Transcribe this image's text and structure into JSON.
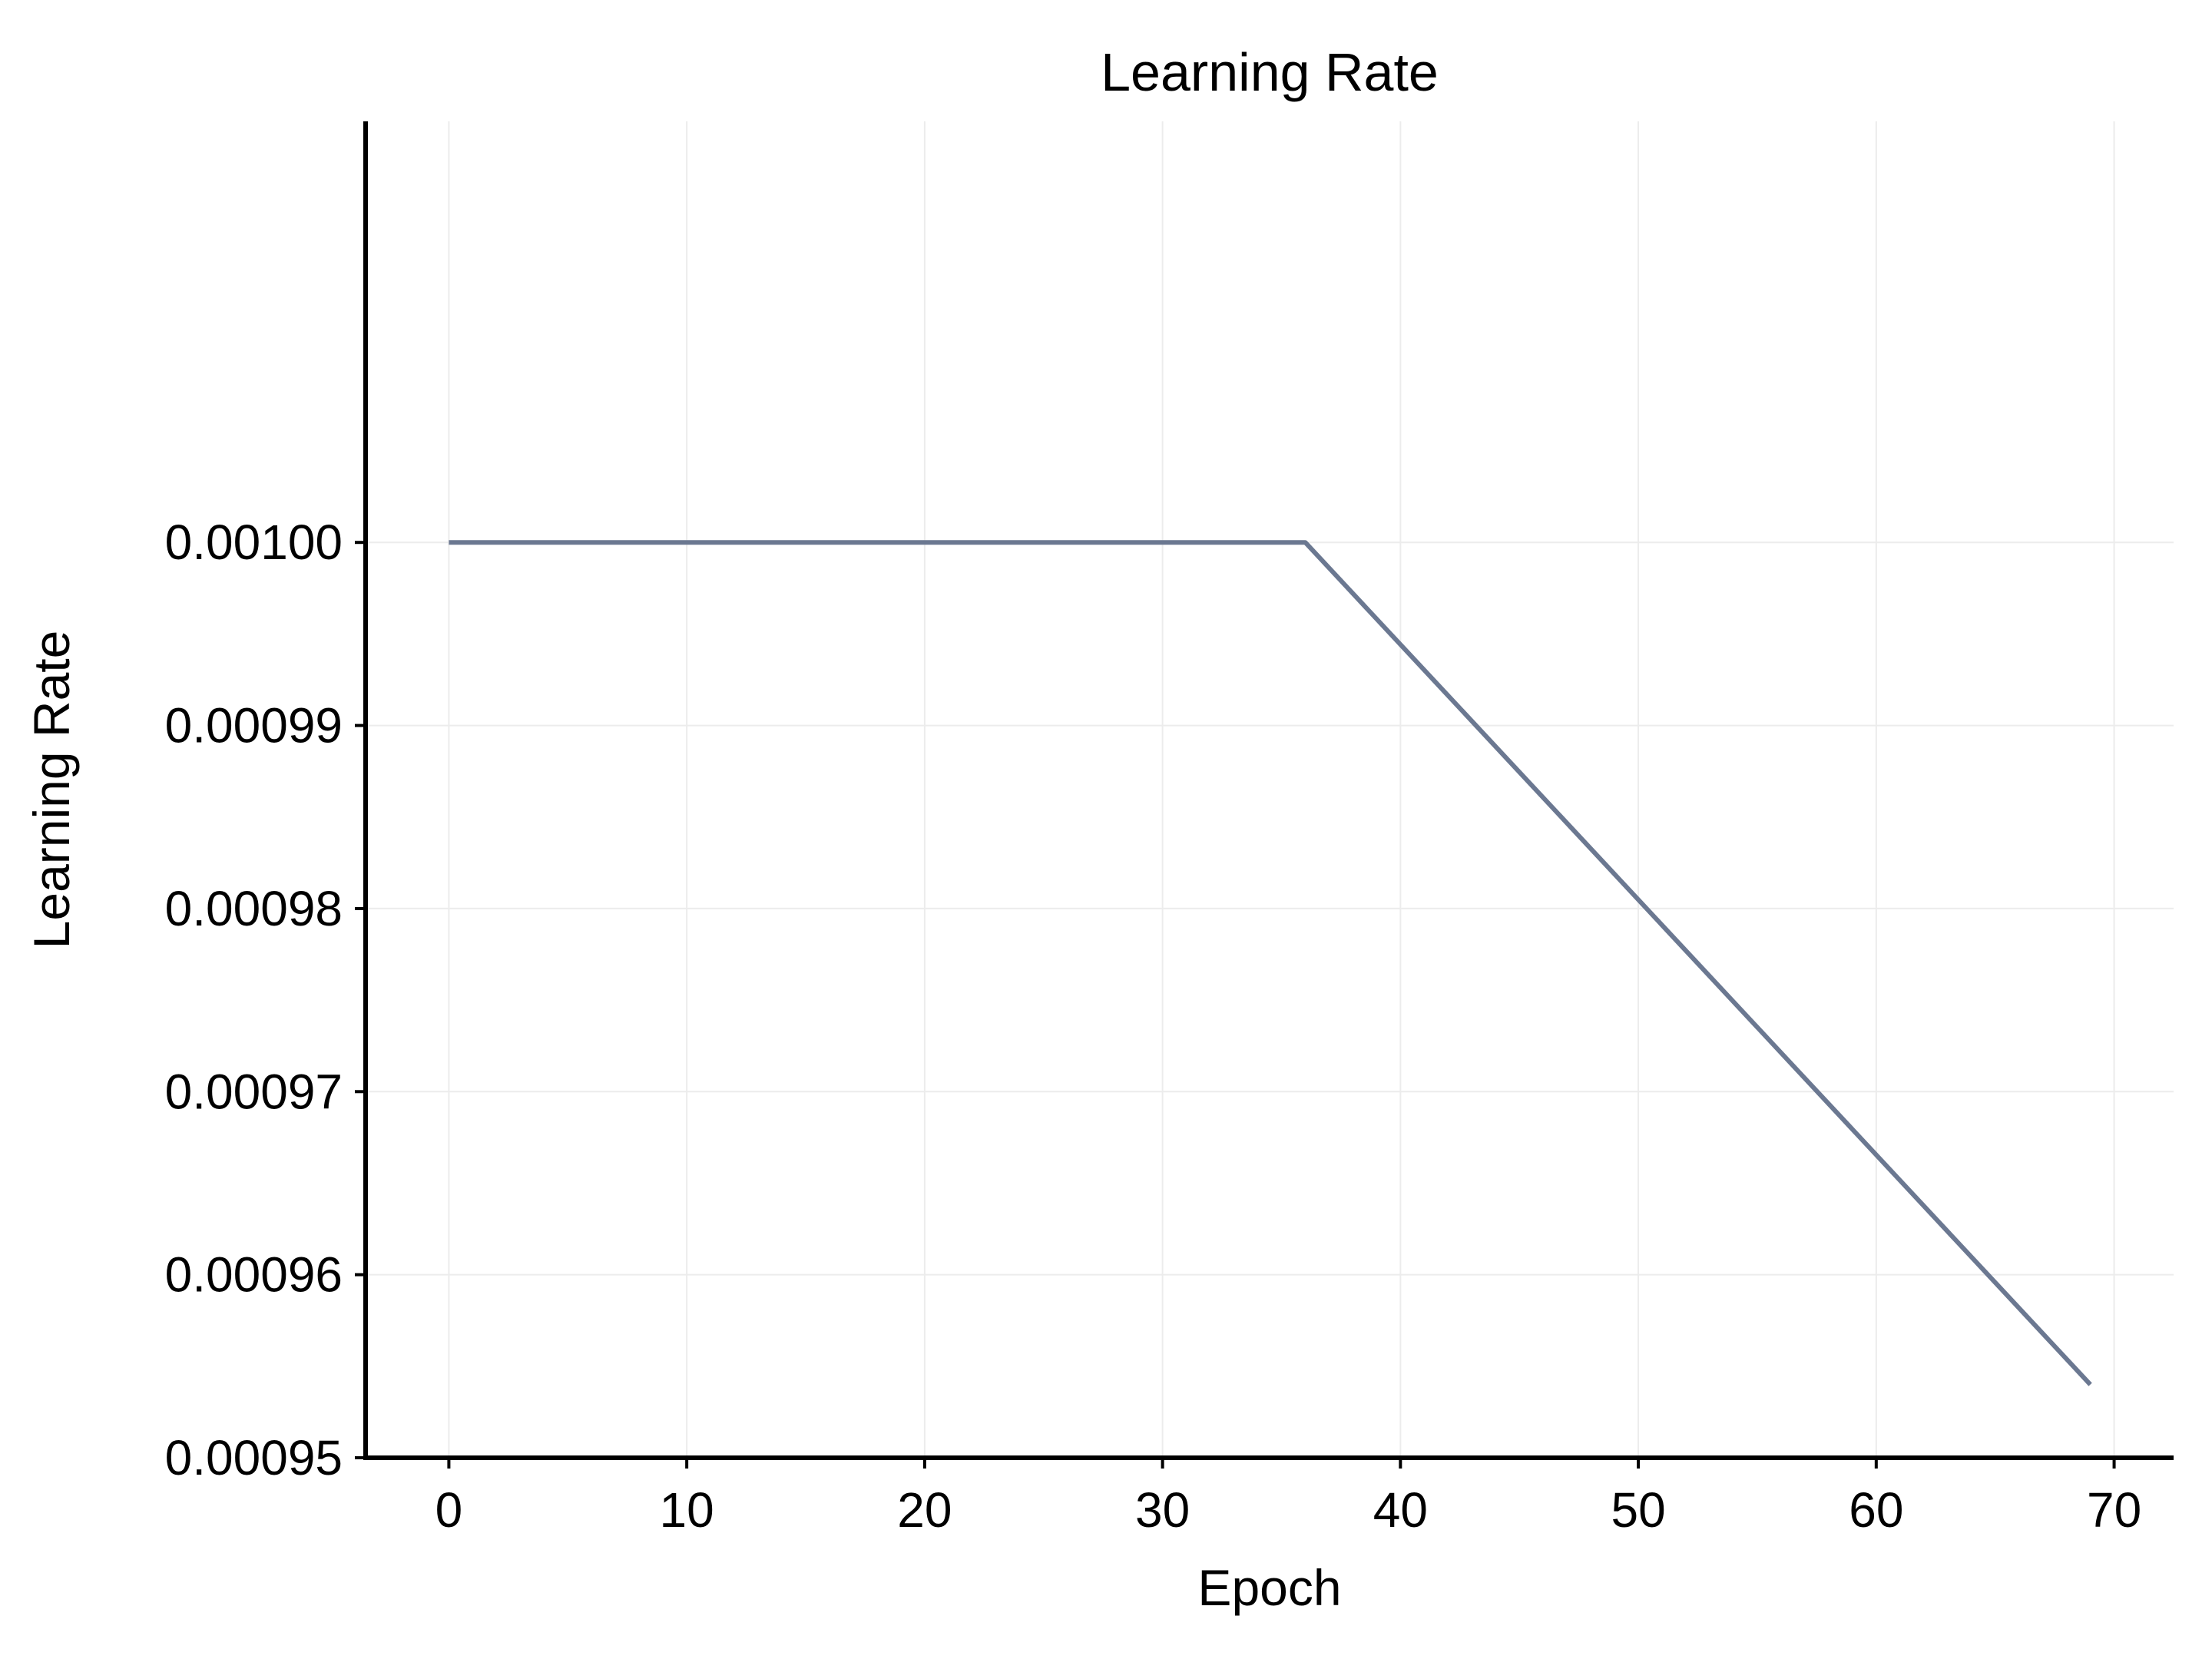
{
  "chart_data": {
    "type": "line",
    "title": "Learning Rate",
    "xlabel": "Epoch",
    "ylabel": "Learning Rate",
    "xlim": [
      -3.5,
      72.5
    ],
    "ylim": [
      0.00095,
      0.001023
    ],
    "x_ticks": [
      "0",
      "10",
      "20",
      "30",
      "40",
      "50",
      "60",
      "70"
    ],
    "x_tick_values": [
      0,
      10,
      20,
      30,
      40,
      50,
      60,
      70
    ],
    "y_ticks": [
      "0.00095",
      "0.00096",
      "0.00097",
      "0.00098",
      "0.00099",
      "0.00100"
    ],
    "y_tick_values": [
      0.00095,
      0.00096,
      0.00097,
      0.00098,
      0.00099,
      0.001
    ],
    "grid": true,
    "series": [
      {
        "color": "#6b7891",
        "x": [
          0,
          36,
          69
        ],
        "y": [
          0.001,
          0.001,
          0.000954
        ]
      }
    ]
  }
}
